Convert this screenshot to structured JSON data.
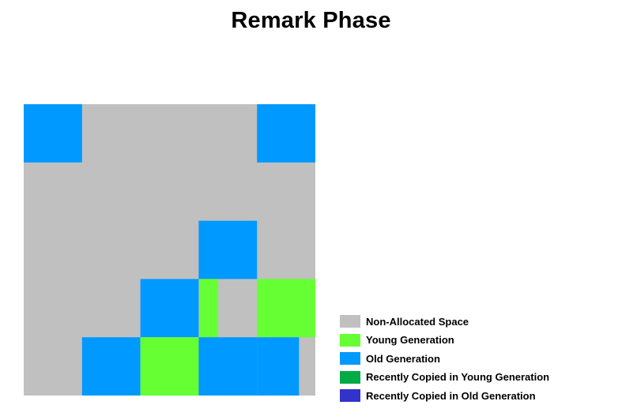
{
  "title": "Remark Phase",
  "colors": {
    "non_allocated": "#c0c0c0",
    "young": "#66ff33",
    "old": "#0099ff",
    "recent_young": "#00aa44",
    "recent_old": "#3333cc"
  },
  "legend": [
    {
      "label": "Non-Allocated Space",
      "color": "#c0c0c0"
    },
    {
      "label": "Young Generation",
      "color": "#66ff33"
    },
    {
      "label": "Old Generation",
      "color": "#0099ff"
    },
    {
      "label": "Recently Copied in Young Generation",
      "color": "#00aa44"
    },
    {
      "label": "Recently Copied in Old Generation",
      "color": "#3333cc"
    }
  ],
  "grid": {
    "rows": 5,
    "cols": 5,
    "cells": [
      [
        "old",
        "free",
        "free",
        "free",
        "old"
      ],
      [
        "free",
        "free",
        "free",
        "free",
        "free"
      ],
      [
        "free",
        "free",
        "free",
        "old",
        "free"
      ],
      [
        "free",
        "free",
        "old",
        "young-partial",
        "young"
      ],
      [
        "free",
        "old",
        "young",
        "old",
        "old-partial"
      ]
    ]
  }
}
